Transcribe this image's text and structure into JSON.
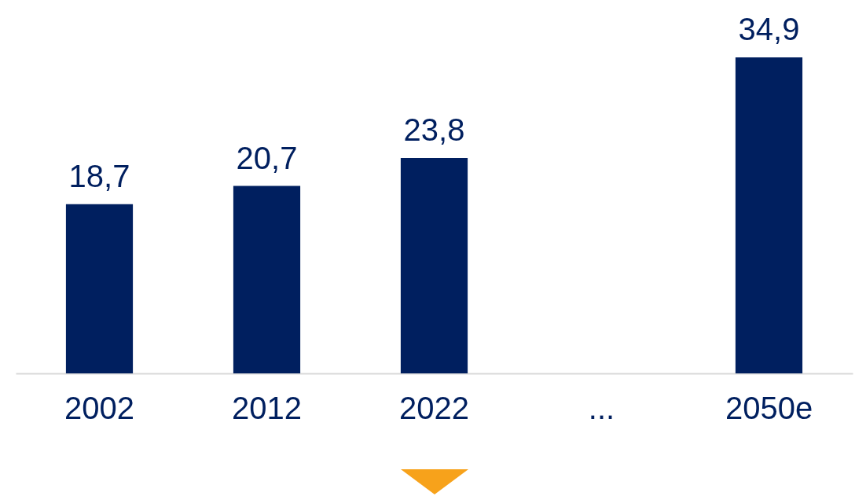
{
  "chart_data": {
    "type": "bar",
    "categories": [
      "2002",
      "2012",
      "2022",
      "...",
      "2050e"
    ],
    "values": [
      18.7,
      20.7,
      23.8,
      null,
      34.9
    ],
    "value_labels": [
      "18,7",
      "20,7",
      "23,8",
      null,
      "34,9"
    ],
    "color": "#001f5f"
  }
}
